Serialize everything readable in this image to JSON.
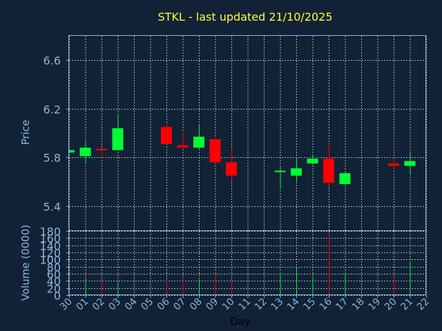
{
  "chart_data": {
    "type": "candlestick",
    "title": "STKL - last updated 21/10/2025",
    "price_panel": {
      "ylabel": "Price",
      "ylim": [
        5.2,
        6.8
      ],
      "yticks": [
        "5.4",
        "5.8",
        "6.2",
        "6.6"
      ],
      "grid": true
    },
    "volume_panel": {
      "ylabel": "Volume (0000)",
      "ylim": [
        0,
        180
      ],
      "yticks": [
        "0",
        "20",
        "40",
        "60",
        "80",
        "100",
        "120",
        "140",
        "160",
        "180"
      ],
      "grid": true
    },
    "xlabel": "Day",
    "x_ticks": [
      "30",
      "01",
      "02",
      "03",
      "04",
      "05",
      "06",
      "07",
      "08",
      "09",
      "10",
      "11",
      "12",
      "13",
      "14",
      "15",
      "16",
      "17",
      "18",
      "19",
      "20",
      "21",
      "22"
    ],
    "up_color": "#00ff33",
    "down_color": "#ff0000",
    "candles": [
      {
        "x": "30",
        "open": 5.84,
        "high": 5.86,
        "low": 5.84,
        "close": 5.86,
        "volume": 0
      },
      {
        "x": "01",
        "open": 5.81,
        "high": 5.94,
        "low": 5.75,
        "close": 5.88,
        "volume": 45
      },
      {
        "x": "02",
        "open": 5.87,
        "high": 5.88,
        "low": 5.79,
        "close": 5.86,
        "volume": 44
      },
      {
        "x": "03",
        "open": 5.86,
        "high": 6.15,
        "low": 5.86,
        "close": 6.04,
        "volume": 40
      },
      {
        "x": "06",
        "open": 6.05,
        "high": 6.08,
        "low": 5.91,
        "close": 5.91,
        "volume": 42
      },
      {
        "x": "07",
        "open": 5.9,
        "high": 6.01,
        "low": 5.88,
        "close": 5.88,
        "volume": 47
      },
      {
        "x": "08",
        "open": 5.88,
        "high": 6.06,
        "low": 5.86,
        "close": 5.97,
        "volume": 43
      },
      {
        "x": "09",
        "open": 5.95,
        "high": 5.96,
        "low": 5.75,
        "close": 5.76,
        "volume": 55
      },
      {
        "x": "10",
        "open": 5.76,
        "high": 5.88,
        "low": 5.63,
        "close": 5.65,
        "volume": 45
      },
      {
        "x": "13",
        "open": 5.68,
        "high": 5.73,
        "low": 5.54,
        "close": 5.69,
        "volume": 57
      },
      {
        "x": "14",
        "open": 5.65,
        "high": 5.8,
        "low": 5.6,
        "close": 5.71,
        "volume": 80
      },
      {
        "x": "15",
        "open": 5.75,
        "high": 5.82,
        "low": 5.74,
        "close": 5.79,
        "volume": 50
      },
      {
        "x": "16",
        "open": 5.79,
        "high": 5.91,
        "low": 5.57,
        "close": 5.59,
        "volume": 175
      },
      {
        "x": "17",
        "open": 5.58,
        "high": 5.68,
        "low": 5.58,
        "close": 5.67,
        "volume": 63
      },
      {
        "x": "20",
        "open": 5.75,
        "high": 5.8,
        "low": 5.7,
        "close": 5.73,
        "volume": 52
      },
      {
        "x": "21",
        "open": 5.73,
        "high": 5.84,
        "low": 5.66,
        "close": 5.77,
        "volume": 95
      }
    ]
  }
}
